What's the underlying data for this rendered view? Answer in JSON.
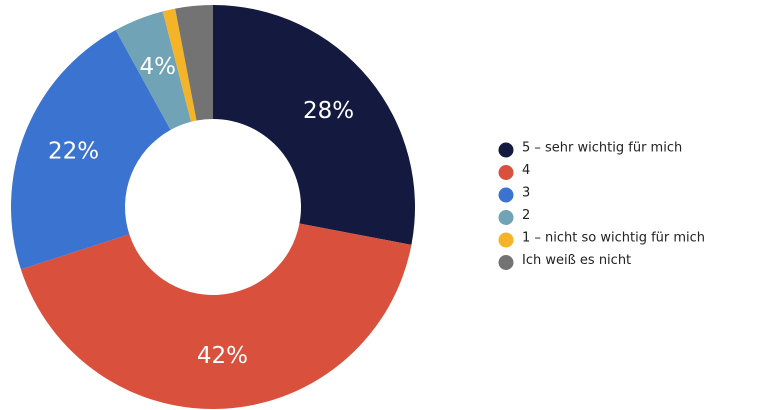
{
  "chart_data": {
    "type": "donut",
    "categories": [
      "5 – sehr wichtig für mich",
      "4",
      "3",
      "2",
      "1 – nicht so wichtig für mich",
      "Ich weiß es nicht"
    ],
    "values": [
      28,
      42,
      22,
      4,
      1,
      3
    ],
    "value_labels": [
      "28%",
      "42%",
      "22%",
      "4%",
      null,
      null
    ],
    "colors": [
      "#141a3f",
      "#d9513d",
      "#3b73d1",
      "#70a3b5",
      "#f5b427",
      "#737373"
    ],
    "legend": "right"
  }
}
